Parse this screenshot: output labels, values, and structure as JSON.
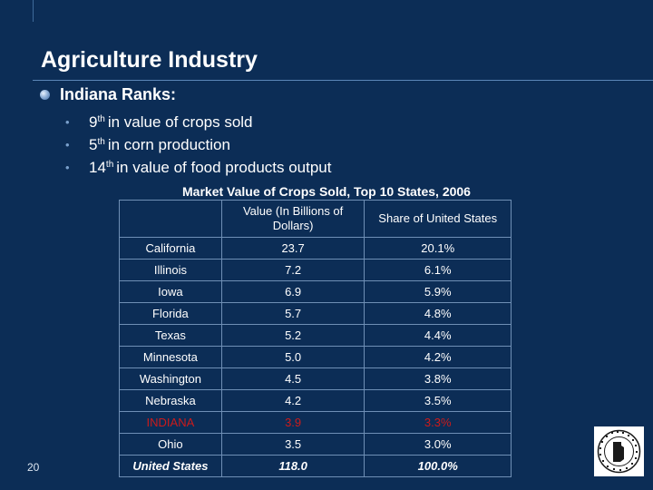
{
  "slide": {
    "title": "Agriculture Industry",
    "main_point": "Indiana Ranks:",
    "sub_points": [
      {
        "rank": "9",
        "suffix": "th",
        "rest": "in value of crops sold"
      },
      {
        "rank": "5",
        "suffix": "th",
        "rest": "in corn production"
      },
      {
        "rank": "14",
        "suffix": "th",
        "rest": "in value of food products output"
      }
    ],
    "page_number": "20"
  },
  "table": {
    "title": "Market Value of Crops Sold, Top 10 States, 2006",
    "headers": [
      "",
      "Value (In Billions of Dollars)",
      "Share of United States"
    ],
    "rows": [
      {
        "state": "California",
        "value": "23.7",
        "share": "20.1%"
      },
      {
        "state": "Illinois",
        "value": "7.2",
        "share": "6.1%"
      },
      {
        "state": "Iowa",
        "value": "6.9",
        "share": "5.9%"
      },
      {
        "state": "Florida",
        "value": "5.7",
        "share": "4.8%"
      },
      {
        "state": "Texas",
        "value": "5.2",
        "share": "4.4%"
      },
      {
        "state": "Minnesota",
        "value": "5.0",
        "share": "4.2%"
      },
      {
        "state": "Washington",
        "value": "4.5",
        "share": "3.8%"
      },
      {
        "state": "Nebraska",
        "value": "4.2",
        "share": "3.5%"
      },
      {
        "state": "INDIANA",
        "value": "3.9",
        "share": "3.3%"
      },
      {
        "state": "Ohio",
        "value": "3.5",
        "share": "3.0%"
      },
      {
        "state": "United States",
        "value": "118.0",
        "share": "100.0%"
      }
    ]
  },
  "colors": {
    "background": "#0c2d56",
    "highlight": "#cc1b1b",
    "bullet": "#7aa0cc"
  },
  "seal": {
    "icon": "indiana-state-seal-icon"
  }
}
